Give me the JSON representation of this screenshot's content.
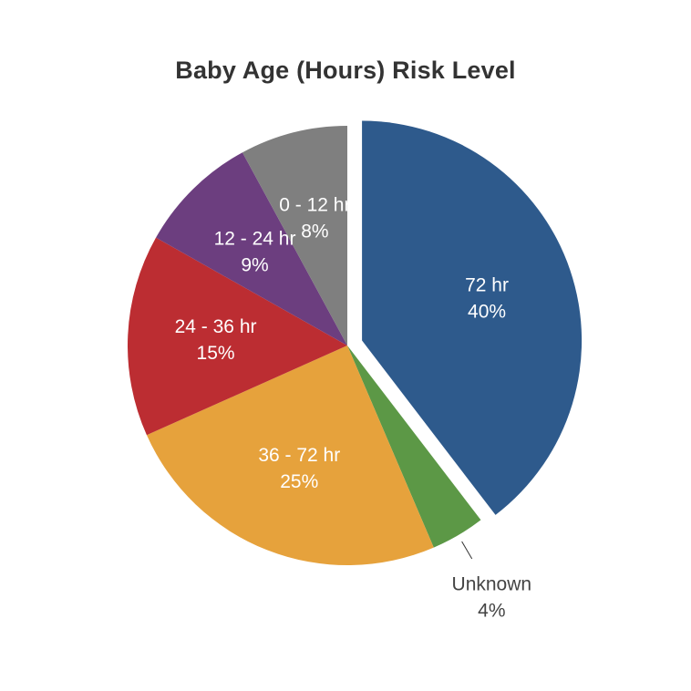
{
  "chart_data": {
    "type": "pie",
    "title": "Baby Age (Hours) Risk Level",
    "slices": [
      {
        "label": "72 hr",
        "value": 40,
        "value_label": "40%",
        "color": "#2e5a8c",
        "exploded": true,
        "label_position": "inside"
      },
      {
        "label": "Unknown",
        "value": 4,
        "value_label": "4%",
        "color": "#5c9846",
        "exploded": false,
        "label_position": "outside"
      },
      {
        "label": "36 - 72 hr",
        "value": 25,
        "value_label": "25%",
        "color": "#e6a23c",
        "exploded": false,
        "label_position": "inside"
      },
      {
        "label": "24 - 36 hr",
        "value": 15,
        "value_label": "15%",
        "color": "#bc2d32",
        "exploded": false,
        "label_position": "inside"
      },
      {
        "label": "12 - 24 hr",
        "value": 9,
        "value_label": "9%",
        "color": "#6c3e7f",
        "exploded": false,
        "label_position": "inside"
      },
      {
        "label": "0 - 12 hr",
        "value": 8,
        "value_label": "8%",
        "color": "#7f7f7f",
        "exploded": false,
        "label_position": "inside"
      }
    ],
    "start_angle": "12 o'clock",
    "direction": "clockwise",
    "legend": "none",
    "label_colors": {
      "inside": "#ffffff",
      "outside": "#444444"
    }
  }
}
